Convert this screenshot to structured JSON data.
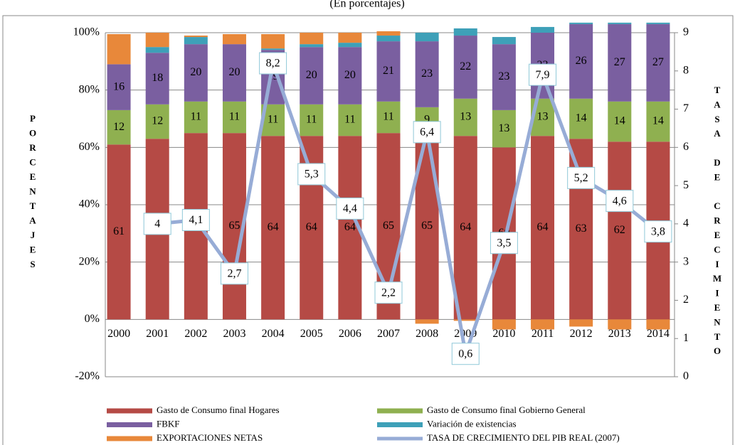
{
  "chart_data": {
    "type": "bar",
    "subtitle": "(En porcentajes)",
    "y_label": "PORCENTAJES",
    "y2_label": "TASA DE CRECIMIENTO",
    "stacked": true,
    "categories": [
      "2000",
      "2001",
      "2002",
      "2003",
      "2004",
      "2005",
      "2006",
      "2007",
      "2008",
      "2009",
      "2010",
      "2011",
      "2012",
      "2013",
      "2014"
    ],
    "series": [
      {
        "name": "Gasto de Consumo final  Hogares",
        "color": "#b54a45",
        "values": [
          61,
          63,
          65,
          65,
          64,
          64,
          64,
          65,
          65,
          64,
          60,
          64,
          63,
          62,
          62
        ]
      },
      {
        "name": "Gasto de Consumo final Gobierno General",
        "color": "#8fb050",
        "values": [
          12,
          12,
          11,
          11,
          11,
          11,
          11,
          11,
          9,
          13,
          13,
          13,
          14,
          14,
          14
        ]
      },
      {
        "name": "FBKF",
        "color": "#7a5fa0",
        "values": [
          16,
          18,
          20,
          20,
          19,
          20,
          20,
          21,
          23,
          22,
          23,
          23,
          26,
          27,
          27
        ]
      },
      {
        "name": "Variación de existencias",
        "color": "#3ea0b8",
        "values": [
          0,
          2,
          2.5,
          0,
          0.5,
          1,
          1.5,
          2,
          3,
          2.5,
          2.5,
          2,
          0.5,
          0.5,
          0.5
        ]
      },
      {
        "name": "EXPORTACIONES NETAS",
        "color": "#e8883a",
        "values": [
          10.5,
          5,
          0.5,
          3.5,
          5,
          4,
          3.5,
          1.5,
          -1.5,
          -0.5,
          -3.5,
          -3.5,
          -2.5,
          -3.5,
          -3.5
        ]
      },
      {
        "name": "TASA DE CRECIMIENTO DEL PIB REAL (2007)",
        "type": "line",
        "axis": "y2",
        "color": "#97acd6",
        "values": [
          null,
          4,
          4.1,
          2.7,
          8.2,
          5.3,
          4.4,
          2.2,
          6.4,
          0.6,
          3.5,
          7.9,
          5.2,
          4.6,
          3.8
        ],
        "value_labels": [
          null,
          "4",
          "4,1",
          "2,7",
          "8,2",
          "5,3",
          "4,4",
          "2,2",
          "6,4",
          "0,6",
          "3,5",
          "7,9",
          "5,2",
          "4,6",
          "3,8"
        ]
      }
    ],
    "ylim": [
      -20,
      100
    ],
    "yticks": [
      {
        "value": -20,
        "label": "-20%"
      },
      {
        "value": 0,
        "label": "0%"
      },
      {
        "value": 20,
        "label": "20%"
      },
      {
        "value": 40,
        "label": "40%"
      },
      {
        "value": 60,
        "label": "60%"
      },
      {
        "value": 80,
        "label": "80%"
      },
      {
        "value": 100,
        "label": "100%"
      }
    ],
    "y2lim": [
      0,
      9
    ],
    "y2ticks": [
      0,
      1,
      2,
      3,
      4,
      5,
      6,
      7,
      8,
      9
    ]
  }
}
